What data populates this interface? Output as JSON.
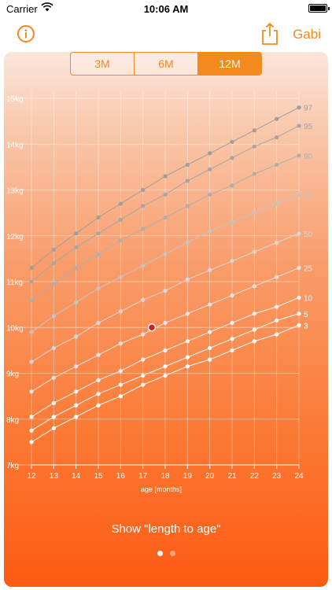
{
  "status_bar": {
    "carrier": "Carrier",
    "time": "10:06 AM"
  },
  "nav": {
    "profile_name": "Gabi"
  },
  "segments": [
    {
      "label": "3M",
      "active": false
    },
    {
      "label": "6M",
      "active": false
    },
    {
      "label": "12M",
      "active": true
    }
  ],
  "footer": {
    "link_label": "Show \"length to age\""
  },
  "page_control": {
    "pages": 2,
    "current": 1
  },
  "colors": {
    "accent": "#f28a1e",
    "child_point": "#d81b1b"
  },
  "chart_data": {
    "type": "line",
    "xlabel": "age [months]",
    "ylabel": "",
    "x": [
      12,
      13,
      14,
      15,
      16,
      17,
      18,
      19,
      20,
      21,
      22,
      23,
      24
    ],
    "xlim": [
      12,
      24
    ],
    "ylim": [
      7,
      15
    ],
    "y_ticks": [
      "7kg",
      "8kg",
      "9kg",
      "10kg",
      "11kg",
      "12kg",
      "13kg",
      "14kg",
      "15kg"
    ],
    "x_ticks": [
      "12",
      "13",
      "14",
      "15",
      "16",
      "17",
      "18",
      "19",
      "20",
      "21",
      "22",
      "23",
      "24"
    ],
    "grid": true,
    "series": [
      {
        "name": "97",
        "values": [
          11.3,
          11.7,
          12.05,
          12.4,
          12.7,
          13.0,
          13.3,
          13.55,
          13.8,
          14.05,
          14.3,
          14.55,
          14.8
        ]
      },
      {
        "name": "95",
        "values": [
          11.0,
          11.4,
          11.75,
          12.05,
          12.35,
          12.65,
          12.9,
          13.2,
          13.45,
          13.7,
          13.95,
          14.15,
          14.4
        ]
      },
      {
        "name": "90",
        "values": [
          10.6,
          10.95,
          11.3,
          11.6,
          11.9,
          12.15,
          12.4,
          12.65,
          12.9,
          13.1,
          13.35,
          13.55,
          13.75
        ]
      },
      {
        "name": "75",
        "values": [
          9.9,
          10.25,
          10.55,
          10.85,
          11.1,
          11.35,
          11.6,
          11.85,
          12.1,
          12.3,
          12.5,
          12.7,
          12.9
        ]
      },
      {
        "name": "50",
        "values": [
          9.25,
          9.55,
          9.8,
          10.1,
          10.35,
          10.6,
          10.8,
          11.05,
          11.25,
          11.45,
          11.65,
          11.85,
          12.05
        ]
      },
      {
        "name": "25",
        "values": [
          8.6,
          8.9,
          9.15,
          9.4,
          9.65,
          9.85,
          10.1,
          10.3,
          10.5,
          10.7,
          10.9,
          11.1,
          11.3
        ]
      },
      {
        "name": "10",
        "values": [
          8.05,
          8.35,
          8.6,
          8.85,
          9.05,
          9.3,
          9.5,
          9.7,
          9.9,
          10.1,
          10.3,
          10.45,
          10.65
        ]
      },
      {
        "name": "5",
        "values": [
          7.75,
          8.05,
          8.3,
          8.55,
          8.75,
          8.95,
          9.15,
          9.35,
          9.55,
          9.75,
          9.95,
          10.15,
          10.3
        ]
      },
      {
        "name": "3",
        "values": [
          7.5,
          7.8,
          8.05,
          8.3,
          8.5,
          8.75,
          8.95,
          9.15,
          9.3,
          9.5,
          9.7,
          9.85,
          10.05
        ]
      }
    ],
    "points": [
      {
        "x": 17.4,
        "y": 10.0,
        "label": ""
      }
    ],
    "right_labels": [
      "97",
      "95",
      "90",
      "75",
      "50",
      "25",
      "10",
      "5",
      "3"
    ]
  }
}
